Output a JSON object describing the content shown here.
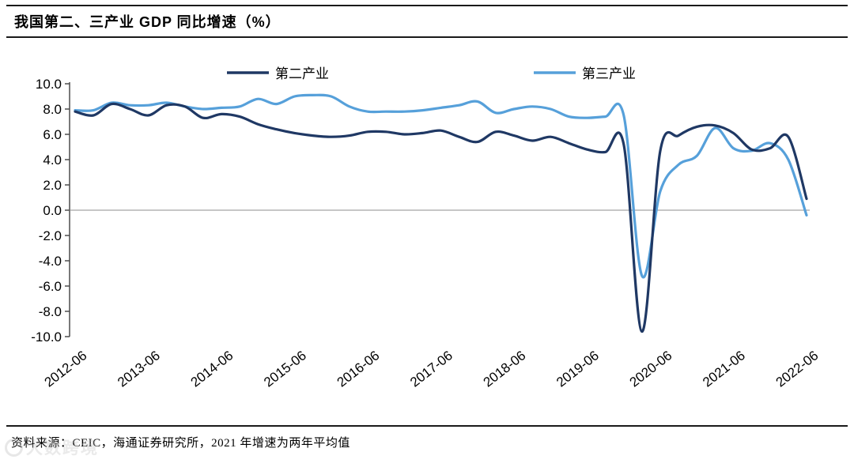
{
  "title": "我国第二、三产业 GDP 同比增速（%）",
  "footer": {
    "source_text": "资料来源：CEIC，海通证券研究所，2021 年增速为两年平均值"
  },
  "watermark": {
    "text": "大数跨境"
  },
  "colors": {
    "secondary_industry": "#1f3864",
    "tertiary_industry": "#56a0da",
    "axis": "#4d4d4d",
    "zero_line": "#8c8c8c",
    "rule": "#1a1a1a"
  },
  "chart_data": {
    "type": "line",
    "title": "我国第二、三产业 GDP 同比增速（%）",
    "xlabel": "",
    "ylabel": "",
    "ylim": [
      -10,
      10
    ],
    "grid": false,
    "legend_position": "top",
    "y_tick_labels": [
      "10.0",
      "8.0",
      "6.0",
      "4.0",
      "2.0",
      "0.0",
      "-2.0",
      "-4.0",
      "-6.0",
      "-8.0",
      "-10.0"
    ],
    "x_tick_labels": [
      "2012-06",
      "2013-06",
      "2014-06",
      "2015-06",
      "2016-06",
      "2017-06",
      "2018-06",
      "2019-06",
      "2020-06",
      "2021-06",
      "2022-06"
    ],
    "x": [
      "2012-06",
      "2012-09",
      "2012-12",
      "2013-03",
      "2013-06",
      "2013-09",
      "2013-12",
      "2014-03",
      "2014-06",
      "2014-09",
      "2014-12",
      "2015-03",
      "2015-06",
      "2015-09",
      "2015-12",
      "2016-03",
      "2016-06",
      "2016-09",
      "2016-12",
      "2017-03",
      "2017-06",
      "2017-09",
      "2017-12",
      "2018-03",
      "2018-06",
      "2018-09",
      "2018-12",
      "2019-03",
      "2019-06",
      "2019-09",
      "2019-12",
      "2020-03",
      "2020-06",
      "2020-09",
      "2020-12",
      "2021-03",
      "2021-06",
      "2021-09",
      "2021-12",
      "2022-03",
      "2022-06"
    ],
    "series": [
      {
        "name": "第二产业",
        "key": "secondary-industry",
        "color": "#1f3864",
        "values": [
          7.8,
          7.5,
          8.4,
          8.0,
          7.5,
          8.3,
          8.2,
          7.3,
          7.6,
          7.4,
          6.8,
          6.4,
          6.1,
          5.9,
          5.8,
          5.9,
          6.2,
          6.2,
          6.0,
          6.1,
          6.3,
          5.8,
          5.4,
          6.2,
          5.9,
          5.5,
          5.8,
          5.3,
          4.8,
          4.6,
          5.2,
          -9.6,
          4.7,
          5.9,
          6.6,
          6.7,
          6.1,
          4.8,
          4.9,
          5.8,
          0.9
        ]
      },
      {
        "name": "第三产业",
        "key": "tertiary-industry",
        "color": "#56a0da",
        "values": [
          7.9,
          7.9,
          8.5,
          8.3,
          8.3,
          8.5,
          8.2,
          8.0,
          8.1,
          8.2,
          8.8,
          8.4,
          9.0,
          9.1,
          9.0,
          8.2,
          7.8,
          7.8,
          7.8,
          7.9,
          8.1,
          8.3,
          8.6,
          7.7,
          8.0,
          8.2,
          8.0,
          7.4,
          7.3,
          7.4,
          7.5,
          -5.2,
          1.5,
          3.6,
          4.3,
          6.5,
          4.9,
          4.7,
          5.3,
          4.0,
          -0.4
        ]
      }
    ]
  }
}
